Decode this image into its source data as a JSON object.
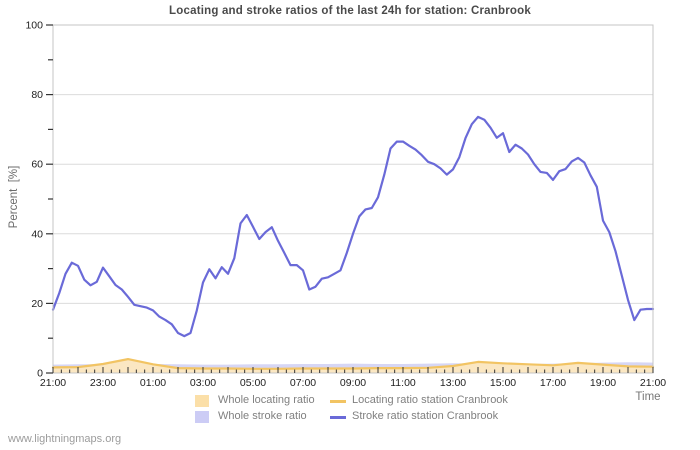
{
  "chart_data": {
    "type": "line",
    "title": "Locating and stroke ratios of the last 24h for station: Cranbrook",
    "ylabel": "Percent  [%]",
    "xlabel": "Time",
    "watermark": "www.lightningmaps.org",
    "ylim": [
      0,
      100
    ],
    "yticks": [
      0,
      20,
      40,
      60,
      80,
      100
    ],
    "x_hours_span": 24,
    "x_tick_labels": [
      "21:00",
      "23:00",
      "01:00",
      "03:00",
      "05:00",
      "07:00",
      "09:00",
      "11:00",
      "13:00",
      "15:00",
      "17:00",
      "19:00",
      "21:00"
    ],
    "grid": "horizontal",
    "legend_position": "bottom",
    "colors": {
      "station_stroke_line": "#6a6ad8",
      "station_locating_line": "#f2c463",
      "whole_stroke_fill": "#d6d6f5",
      "whole_locating_fill": "#fbe7c2",
      "gridline": "#dcdcdc",
      "plot_border": "#c4c4c4"
    },
    "series": [
      {
        "name": "Whole stroke ratio",
        "kind": "area",
        "color": "#d6d6f5",
        "step_h": 1,
        "values": [
          2.4,
          2.5,
          2.5,
          2.5,
          2.6,
          2.5,
          2.4,
          2.4,
          2.5,
          2.5,
          2.6,
          2.6,
          2.7,
          2.6,
          2.6,
          2.7,
          2.8,
          2.7,
          2.6,
          2.6,
          2.7,
          2.8,
          3.0,
          3.1,
          3.0
        ]
      },
      {
        "name": "Whole locating ratio",
        "kind": "area",
        "color": "#fbe7c2",
        "step_h": 1,
        "values": [
          1.3,
          1.4,
          2.2,
          3.8,
          2.3,
          1.2,
          1.1,
          1.1,
          1.0,
          1.0,
          1.1,
          1.1,
          1.2,
          1.2,
          1.3,
          1.4,
          1.9,
          3.0,
          2.6,
          2.3,
          2.1,
          2.7,
          2.2,
          1.8,
          1.7
        ]
      },
      {
        "name": "Locating ratio station Cranbrook",
        "kind": "line",
        "color": "#f2c463",
        "step_h": 1,
        "values": [
          1.6,
          1.7,
          2.6,
          4.0,
          2.5,
          1.4,
          1.3,
          1.3,
          1.2,
          1.2,
          1.3,
          1.3,
          1.3,
          1.4,
          1.4,
          1.5,
          2.0,
          3.2,
          2.8,
          2.5,
          2.2,
          2.9,
          2.4,
          1.9,
          1.8
        ]
      },
      {
        "name": "Stroke ratio station Cranbrook",
        "kind": "line",
        "color": "#6a6ad8",
        "step_h": 0.25,
        "values": [
          18.2,
          23,
          28.5,
          31.7,
          30.8,
          26.8,
          25.2,
          26.2,
          30.3,
          27.8,
          25.3,
          24,
          21.9,
          19.6,
          19.2,
          18.8,
          18,
          16.2,
          15.2,
          14,
          11.5,
          10.6,
          11.5,
          18,
          26,
          29.8,
          27.2,
          30.4,
          28.5,
          33,
          43,
          45.4,
          42,
          38.5,
          40.5,
          41.9,
          38,
          34.5,
          31,
          31,
          29.5,
          24,
          24.8,
          27.1,
          27.5,
          28.5,
          29.5,
          34.5,
          40,
          45,
          47,
          47.4,
          50.5,
          57,
          64.5,
          66.5,
          66.5,
          65.3,
          64.2,
          62.6,
          60.7,
          60,
          58.8,
          57,
          58.5,
          62,
          67.5,
          71.5,
          73.6,
          72.8,
          70.5,
          67.6,
          68.9,
          63.5,
          65.6,
          64.5,
          62.8,
          60,
          57.8,
          57.5,
          55.5,
          58,
          58.6,
          60.8,
          61.8,
          60.5,
          56.8,
          53.5,
          43.8,
          40.5,
          35,
          28,
          21,
          15.2,
          18.2,
          18.4,
          18.4
        ]
      }
    ],
    "legend": [
      {
        "label": "Whole locating ratio",
        "swatch": "area",
        "color": "#fbdfa8"
      },
      {
        "label": "Whole stroke ratio",
        "swatch": "area",
        "color": "#ccccf5"
      },
      {
        "label": "Locating ratio station Cranbrook",
        "swatch": "line",
        "color": "#f2c463"
      },
      {
        "label": "Stroke ratio station Cranbrook",
        "swatch": "line",
        "color": "#6a6ad8"
      }
    ]
  }
}
